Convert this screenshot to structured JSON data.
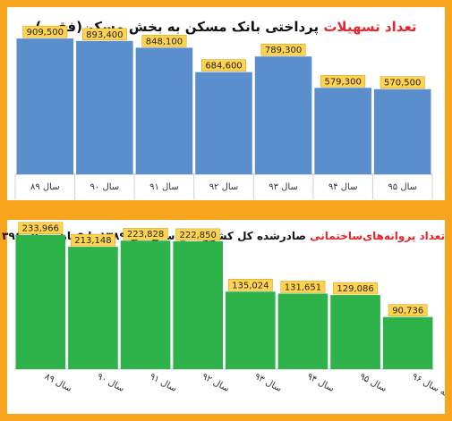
{
  "colors": {
    "background": "#F7A51C",
    "panel": "#FFFFFF",
    "title_highlight": "#E8242C",
    "label_fill": "#FFD34E",
    "bar_blue": "#5B8ECC",
    "bar_green": "#2DB34A"
  },
  "chart_data": [
    {
      "type": "bar",
      "title_highlight": "تعداد تسهیلات",
      "title_rest": " پرداختی بانک مسکن به بخش مسکن(فقره)",
      "categories": [
        "سال ۸۹",
        "سال ۹۰",
        "سال ۹۱",
        "سال ۹۲",
        "سال ۹۳",
        "سال ۹۴",
        "سال ۹۵"
      ],
      "values": [
        909500,
        893400,
        848100,
        684600,
        789300,
        579300,
        570500
      ],
      "value_labels": [
        "909,500",
        "893,400",
        "848,100",
        "684,600",
        "789,300",
        "579,300",
        "570,500"
      ],
      "ylim": [
        0,
        1000000
      ],
      "grid": false,
      "legend": "none"
    },
    {
      "type": "bar",
      "title_highlight": "تعداد پروانه‌های‌ساختمانی",
      "title_rest": " صادرشده کل کشور طی سال‌های ۱۳۸۹ تا ۹ماهه سال ۱۳۹۶",
      "categories": [
        "سال ۸۹",
        "سال ۹۰",
        "سال ۹۱",
        "سال ۹۲",
        "سال ۹۳",
        "سال ۹۴",
        "سال ۹۵",
        "۹ماهه سال ۹۶"
      ],
      "values": [
        233966,
        213148,
        223828,
        222850,
        135024,
        131651,
        129086,
        90736
      ],
      "value_labels": [
        "233,966",
        "213,148",
        "223,828",
        "222,850",
        "135,024",
        "131,651",
        "129,086",
        "90,736"
      ],
      "ylim": [
        0,
        260000
      ],
      "grid": false,
      "legend": "none"
    }
  ]
}
